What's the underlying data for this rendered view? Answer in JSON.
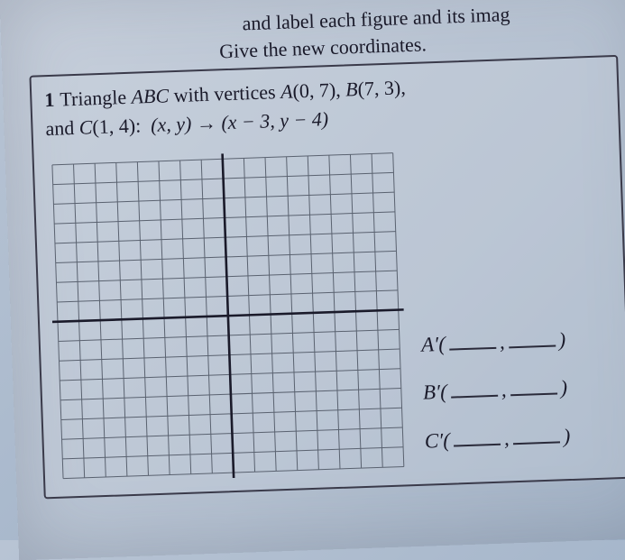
{
  "header": {
    "line1_fragment": "and label each figure and its imag",
    "line2": "Give the new coordinates."
  },
  "problem": {
    "number": "1",
    "text_part1": "Triangle ",
    "triangle_name": "ABC",
    "text_part2": " with vertices ",
    "vA_label": "A",
    "vA_coords": "(0, 7)",
    "vB_label": "B",
    "vB_coords": "(7, 3)",
    "text_part3": "and ",
    "vC_label": "C",
    "vC_coords": "(1, 4)",
    "rule_lhs": "(x, y)",
    "rule_arrow": "→",
    "rule_rhs": "(x − 3, y − 4)"
  },
  "grid": {
    "cols": 16,
    "rows": 16,
    "axis_col": 8,
    "axis_row": 8,
    "line_color": "#5a6270",
    "axis_color": "#1a1a2a",
    "bg": "rgba(255,255,255,0.0)"
  },
  "answers": {
    "a_label": "A′",
    "b_label": "B′",
    "c_label": "C′",
    "open": "(",
    "sep": ",",
    "close": ")"
  }
}
